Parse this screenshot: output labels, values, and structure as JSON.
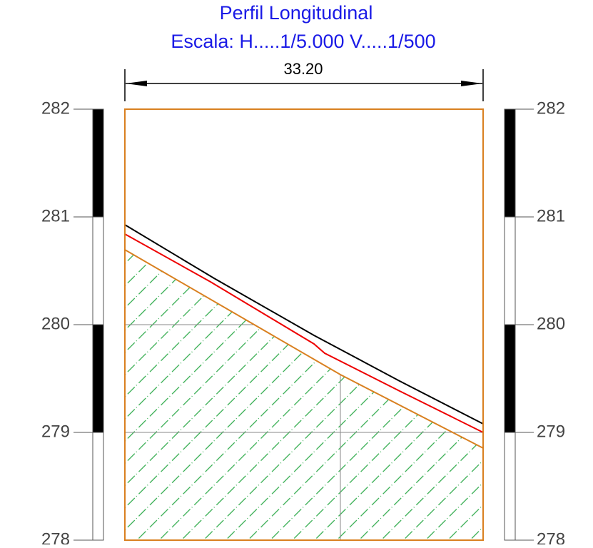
{
  "header": {
    "title": "Perfil Longitudinal",
    "subtitle": "Escala:  H.....1/5.000   V.....1/500"
  },
  "dimension": "33.20",
  "scale_labels": [
    "282",
    "281",
    "280",
    "279",
    "278"
  ]
}
